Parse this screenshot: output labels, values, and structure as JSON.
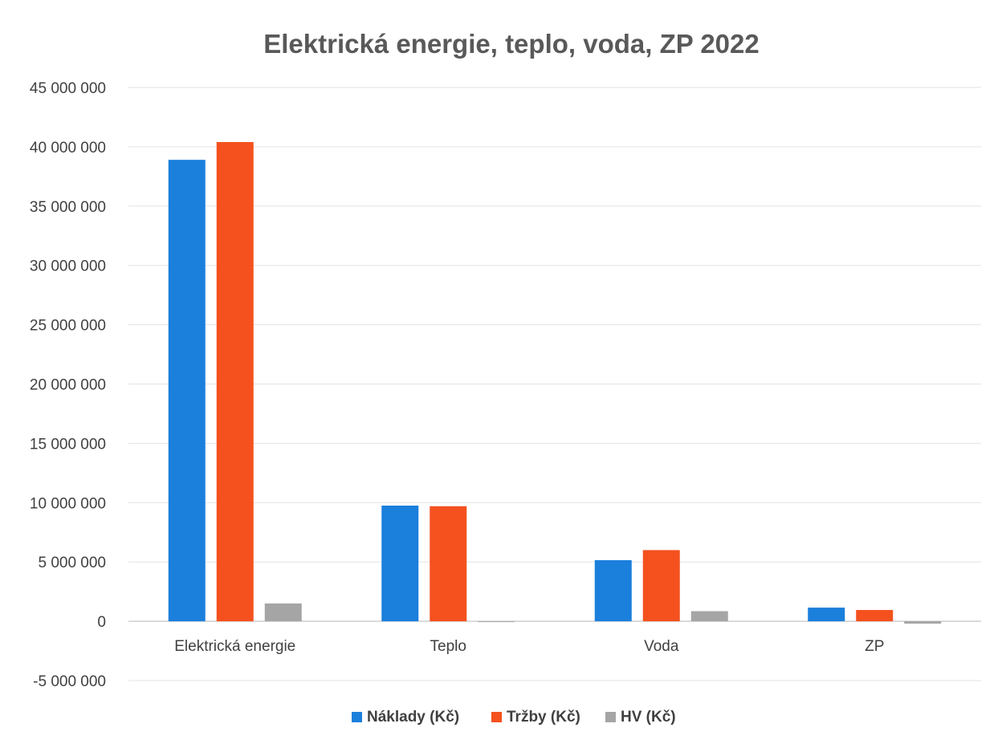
{
  "chart_data": {
    "type": "bar",
    "title": "Elektrická energie, teplo, voda, ZP 2022",
    "xlabel": "",
    "ylabel": "",
    "categories": [
      "Elektrická energie",
      "Teplo",
      "Voda",
      "ZP"
    ],
    "series": [
      {
        "name": "Náklady (Kč)",
        "color": "#1b7fdc",
        "values": [
          38900000,
          9750000,
          5150000,
          1150000
        ]
      },
      {
        "name": "Tržby (Kč)",
        "color": "#f4511e",
        "values": [
          40400000,
          9700000,
          6000000,
          950000
        ]
      },
      {
        "name": "HV (Kč)",
        "color": "#a5a5a5",
        "values": [
          1500000,
          -50000,
          850000,
          -200000
        ]
      }
    ],
    "ylim": [
      -5000000,
      45000000
    ],
    "yticks": [
      -5000000,
      0,
      5000000,
      10000000,
      15000000,
      20000000,
      25000000,
      30000000,
      35000000,
      40000000,
      45000000
    ],
    "ytick_labels": [
      "-5 000 000",
      "0",
      "5 000 000",
      "10 000 000",
      "15 000 000",
      "20 000 000",
      "25 000 000",
      "30 000 000",
      "35 000 000",
      "40 000 000",
      "45 000 000"
    ],
    "grid": true,
    "legend_position": "bottom"
  }
}
